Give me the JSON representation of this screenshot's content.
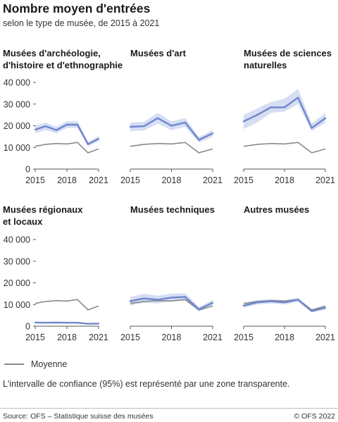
{
  "title": "Nombre moyen d'entrées",
  "subtitle": "selon le type de musée, de 2015 à 2021",
  "legend": {
    "label": "Moyenne"
  },
  "note": "L'intervalle de confiance (95%) est représenté par une zone transparente.",
  "footer": {
    "source": "Source: OFS – Statistique suisse des musées",
    "credit": "© OFS 2022"
  },
  "colors": {
    "series": "#6f86cc",
    "band": "#c8d3f0",
    "average": "#8a8a8a",
    "axis": "#555555"
  },
  "chart_data": [
    {
      "type": "line",
      "title": "Musées d'archéologie, d'histoire et d'ethnographie",
      "title_lines": [
        "Musées d'archéologie,",
        "d'histoire et d'ethnographie"
      ],
      "x": [
        2015,
        2016,
        2017,
        2018,
        2019,
        2020,
        2021
      ],
      "xticks": [
        "2015",
        "2018",
        "2021"
      ],
      "yticks": [
        "40 000",
        "30 000",
        "20 000",
        "10 000",
        "0"
      ],
      "ylim": [
        0,
        40000
      ],
      "series": [
        {
          "values": [
            18200,
            19800,
            18000,
            20500,
            20500,
            11500,
            14000
          ],
          "ci_low": [
            16500,
            18000,
            16500,
            19000,
            19000,
            10500,
            12800
          ],
          "ci_high": [
            20000,
            21500,
            19500,
            22000,
            22000,
            12500,
            15200
          ]
        },
        {
          "name": "Moyenne",
          "values": [
            10500,
            11400,
            11800,
            11600,
            12300,
            7500,
            9300
          ]
        }
      ]
    },
    {
      "type": "line",
      "title": "Musées d'art",
      "title_lines": [
        "Musées d'art"
      ],
      "x": [
        2015,
        2016,
        2017,
        2018,
        2019,
        2020,
        2021
      ],
      "xticks": [
        "2015",
        "2018",
        "2021"
      ],
      "yticks": [],
      "ylim": [
        0,
        40000
      ],
      "series": [
        {
          "values": [
            19500,
            19800,
            23500,
            20000,
            21500,
            13500,
            16500
          ],
          "ci_low": [
            17500,
            17800,
            21000,
            18000,
            19500,
            12200,
            15000
          ],
          "ci_high": [
            21500,
            21800,
            26000,
            22000,
            23500,
            14800,
            18000
          ]
        },
        {
          "name": "Moyenne",
          "values": [
            10500,
            11400,
            11800,
            11600,
            12300,
            7500,
            9300
          ]
        }
      ]
    },
    {
      "type": "line",
      "title": "Musées de sciences naturelles",
      "title_lines": [
        "Musées de sciences",
        "naturelles"
      ],
      "x": [
        2015,
        2016,
        2017,
        2018,
        2019,
        2020,
        2021
      ],
      "xticks": [
        "2015",
        "2018",
        "2021"
      ],
      "yticks": [],
      "ylim": [
        0,
        40000
      ],
      "series": [
        {
          "values": [
            22000,
            25000,
            28500,
            28500,
            33000,
            19000,
            23500
          ],
          "ci_low": [
            18500,
            21500,
            26000,
            26500,
            30000,
            17500,
            21500
          ],
          "ci_high": [
            25000,
            28000,
            31000,
            32500,
            37000,
            21000,
            26000
          ]
        },
        {
          "name": "Moyenne",
          "values": [
            10500,
            11400,
            11800,
            11600,
            12300,
            7500,
            9300
          ]
        }
      ]
    },
    {
      "type": "line",
      "title": "Musées régionaux et locaux",
      "title_lines": [
        "Musées régionaux",
        "et locaux"
      ],
      "x": [
        2015,
        2016,
        2017,
        2018,
        2019,
        2020,
        2021
      ],
      "xticks": [
        "2015",
        "2018",
        "2021"
      ],
      "yticks": [
        "40 000",
        "30 000",
        "20 000",
        "10 000",
        "0"
      ],
      "ylim": [
        0,
        40000
      ],
      "series": [
        {
          "values": [
            1700,
            1600,
            1700,
            1600,
            1600,
            1100,
            1200
          ],
          "ci_low": [
            1500,
            1400,
            1500,
            1400,
            1400,
            950,
            1050
          ],
          "ci_high": [
            1900,
            1800,
            1900,
            1800,
            1800,
            1250,
            1350
          ]
        },
        {
          "name": "Moyenne",
          "values": [
            10500,
            11400,
            11800,
            11600,
            12300,
            7500,
            9300
          ]
        }
      ]
    },
    {
      "type": "line",
      "title": "Musées techniques",
      "title_lines": [
        "Musées techniques"
      ],
      "x": [
        2015,
        2016,
        2017,
        2018,
        2019,
        2020,
        2021
      ],
      "xticks": [
        "2015",
        "2018",
        "2021"
      ],
      "yticks": [],
      "ylim": [
        0,
        40000
      ],
      "series": [
        {
          "values": [
            11500,
            12800,
            12200,
            13200,
            13500,
            7800,
            10800
          ],
          "ci_low": [
            9500,
            10800,
            10500,
            11500,
            11800,
            6800,
            9500
          ],
          "ci_high": [
            13500,
            15000,
            14000,
            15000,
            15200,
            8800,
            12200
          ]
        },
        {
          "name": "Moyenne",
          "values": [
            10500,
            11400,
            11800,
            11600,
            12300,
            7500,
            9300
          ]
        }
      ]
    },
    {
      "type": "line",
      "title": "Autres musées",
      "title_lines": [
        "Autres musées"
      ],
      "x": [
        2015,
        2016,
        2017,
        2018,
        2019,
        2020,
        2021
      ],
      "xticks": [
        "2015",
        "2018",
        "2021"
      ],
      "yticks": [],
      "ylim": [
        0,
        40000
      ],
      "series": [
        {
          "values": [
            9500,
            11000,
            11500,
            11000,
            12200,
            7000,
            8500
          ],
          "ci_low": [
            8500,
            10000,
            10500,
            10000,
            11200,
            6300,
            7700
          ],
          "ci_high": [
            10500,
            12000,
            12500,
            12000,
            13200,
            7700,
            9300
          ]
        },
        {
          "name": "Moyenne",
          "values": [
            10500,
            11400,
            11800,
            11600,
            12300,
            7500,
            9300
          ]
        }
      ]
    }
  ]
}
